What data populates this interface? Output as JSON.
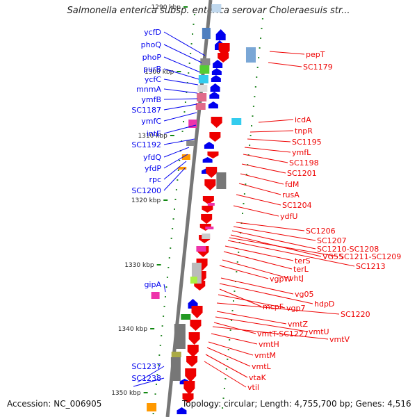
{
  "header": {
    "title": "Salmonella enterica subsp. enterica serovar Choleraesuis str..."
  },
  "footer": {
    "accession": "Accession: NC_006905",
    "summary": "Topology: circular; Length: 4,755,700 bp; Genes: 4,516"
  },
  "map": {
    "ticks": [
      "1290 kbp",
      "1300 kbp",
      "1310 kbp",
      "1320 kbp",
      "1330 kbp",
      "1340 kbp",
      "1350 kbp"
    ],
    "colors": {
      "forward": "#0000ee",
      "reverse": "#ee0000",
      "backbone": "#777777",
      "tick": "#118811"
    },
    "left_labels": [
      "ycfD",
      "phoQ",
      "phoP",
      "purB",
      "ycfC",
      "mnmA",
      "ymfB",
      "SC1187",
      "ymfC",
      "intE",
      "SC1192",
      "yfdQ",
      "yfdP",
      "rpc",
      "SC1200",
      "gipA",
      "SC1237",
      "SC1238"
    ],
    "right_labels": [
      "pepT",
      "SC1179",
      "icdA",
      "tnpR",
      "SC1195",
      "ymfL",
      "SC1198",
      "SC1201",
      "fdM",
      "rusA",
      "SC1204",
      "ydfU",
      "SC1206",
      "SC1207",
      "SC1210-SC1208",
      "VG55",
      "SC1211-SC1209",
      "SC1213",
      "terS",
      "terL",
      "vhtJ",
      "vgpW",
      "vg05",
      "hdpD",
      "mcpF",
      "vgp7",
      "SC1220",
      "vmtZ",
      "vmtU",
      "vmtT-SC1227",
      "vmtV",
      "vmtH",
      "vmtM",
      "vmtL",
      "vtaK",
      "vtil"
    ]
  }
}
